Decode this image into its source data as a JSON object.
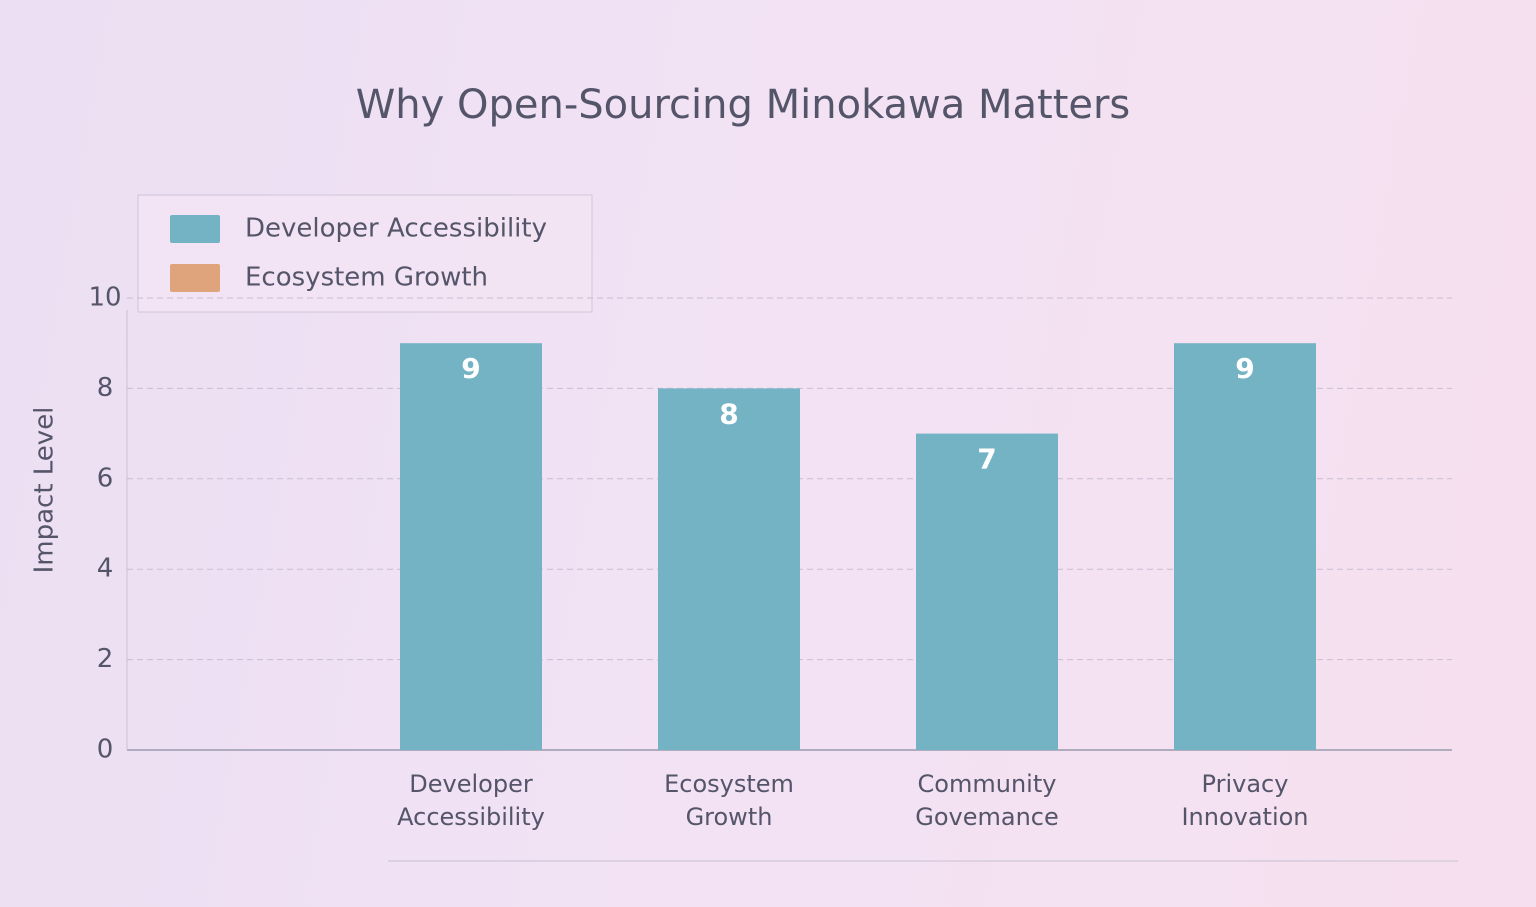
{
  "chart_data": {
    "type": "bar",
    "title": "Why Open-Sourcing Minokawa Matters",
    "y_label": "Impact Level",
    "categories": [
      "Developer Accessibility",
      "Ecosystem Growth",
      "Community Govemance",
      "Privacy Innovation"
    ],
    "series": [
      {
        "name": "Developer Accessibility",
        "color": "#74b3c4",
        "values": [
          9,
          8,
          7,
          9
        ]
      },
      {
        "name": "Ecosystem Growth",
        "color": "#e0a47c",
        "values": [
          null,
          null,
          null,
          null
        ]
      }
    ],
    "ylim": [
      0,
      10
    ],
    "yticks": [
      0,
      2,
      4,
      6,
      8,
      10
    ],
    "grid": true,
    "legend": "upper left"
  }
}
